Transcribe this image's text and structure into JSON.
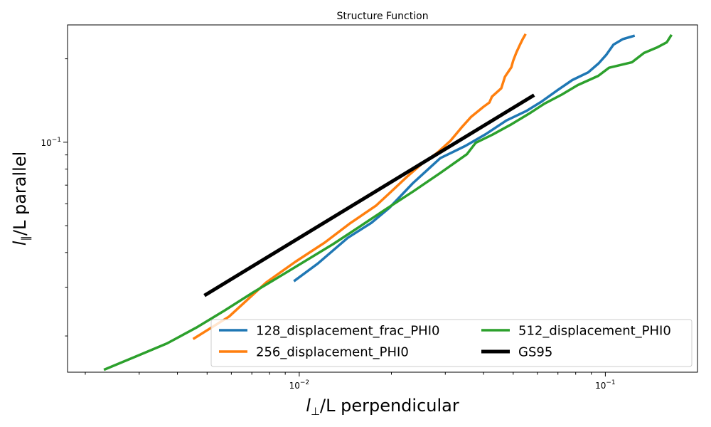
{
  "chart_data": {
    "type": "line",
    "title": "Structure Function",
    "xlabel": {
      "pre": "l",
      "sub": "⊥",
      "post": "/L perpendicular"
    },
    "ylabel": {
      "pre": "l",
      "sub": "∥",
      "post": "/L parallel"
    },
    "xscale": "log",
    "yscale": "log",
    "xlim": [
      0.00175,
      0.2
    ],
    "ylim": [
      0.0148,
      0.265
    ],
    "grid": false,
    "legend_position": "lower-right",
    "legend_columns": 2,
    "x_tick_labels": [
      {
        "value": 0.01,
        "base": "10",
        "exp": "−2"
      },
      {
        "value": 0.1,
        "base": "10",
        "exp": "−1"
      }
    ],
    "y_tick_labels": [
      {
        "value": 0.1,
        "base": "10",
        "exp": "−1"
      }
    ],
    "series": [
      {
        "name": "128_displacement_frac_PHI0",
        "color": "#1f77b4",
        "width": 3.5,
        "points": [
          [
            0.0096,
            0.0315
          ],
          [
            0.0115,
            0.0365
          ],
          [
            0.0144,
            0.0452
          ],
          [
            0.0172,
            0.0512
          ],
          [
            0.0197,
            0.058
          ],
          [
            0.0235,
            0.0711
          ],
          [
            0.0289,
            0.0876
          ],
          [
            0.0349,
            0.097
          ],
          [
            0.0406,
            0.1068
          ],
          [
            0.0475,
            0.1198
          ],
          [
            0.0551,
            0.1295
          ],
          [
            0.0619,
            0.1402
          ],
          [
            0.07,
            0.1545
          ],
          [
            0.078,
            0.1676
          ],
          [
            0.0879,
            0.1786
          ],
          [
            0.0951,
            0.1926
          ],
          [
            0.1008,
            0.207
          ],
          [
            0.1063,
            0.225
          ],
          [
            0.1141,
            0.2356
          ],
          [
            0.1247,
            0.2424
          ]
        ]
      },
      {
        "name": "256_displacement_PHI0",
        "color": "#ff7f0e",
        "width": 3.5,
        "points": [
          [
            0.0045,
            0.0195
          ],
          [
            0.0059,
            0.0235
          ],
          [
            0.0078,
            0.0312
          ],
          [
            0.0097,
            0.037
          ],
          [
            0.0121,
            0.0434
          ],
          [
            0.0147,
            0.0511
          ],
          [
            0.0178,
            0.059
          ],
          [
            0.0199,
            0.0661
          ],
          [
            0.0225,
            0.0751
          ],
          [
            0.025,
            0.0831
          ],
          [
            0.0282,
            0.0915
          ],
          [
            0.0312,
            0.1012
          ],
          [
            0.0339,
            0.113
          ],
          [
            0.0364,
            0.1233
          ],
          [
            0.04,
            0.1343
          ],
          [
            0.0418,
            0.139
          ],
          [
            0.0426,
            0.146
          ],
          [
            0.0457,
            0.1565
          ],
          [
            0.047,
            0.1723
          ],
          [
            0.0493,
            0.1864
          ],
          [
            0.05,
            0.197
          ],
          [
            0.0512,
            0.2105
          ],
          [
            0.0527,
            0.2257
          ],
          [
            0.0537,
            0.2356
          ],
          [
            0.0549,
            0.2459
          ]
        ]
      },
      {
        "name": "512_displacement_PHI0",
        "color": "#2ca02c",
        "width": 3.5,
        "points": [
          [
            0.0023,
            0.0151
          ],
          [
            0.0029,
            0.0168
          ],
          [
            0.0037,
            0.0188
          ],
          [
            0.0046,
            0.0214
          ],
          [
            0.0057,
            0.0247
          ],
          [
            0.0071,
            0.0288
          ],
          [
            0.0086,
            0.0327
          ],
          [
            0.0106,
            0.0376
          ],
          [
            0.0129,
            0.0429
          ],
          [
            0.0158,
            0.0497
          ],
          [
            0.0194,
            0.0578
          ],
          [
            0.0236,
            0.0665
          ],
          [
            0.0288,
            0.0773
          ],
          [
            0.0353,
            0.0905
          ],
          [
            0.0377,
            0.0995
          ],
          [
            0.0428,
            0.1065
          ],
          [
            0.0495,
            0.1163
          ],
          [
            0.0563,
            0.1267
          ],
          [
            0.063,
            0.1374
          ],
          [
            0.072,
            0.1485
          ],
          [
            0.0812,
            0.1607
          ],
          [
            0.0948,
            0.1735
          ],
          [
            0.1028,
            0.1856
          ],
          [
            0.1223,
            0.1944
          ],
          [
            0.1338,
            0.2099
          ],
          [
            0.1474,
            0.2196
          ],
          [
            0.1587,
            0.2294
          ],
          [
            0.1645,
            0.2442
          ]
        ]
      },
      {
        "name": "GS95",
        "color": "#000000",
        "width": 5,
        "points": [
          [
            0.0049,
            0.028
          ],
          [
            0.0585,
            0.1479
          ]
        ]
      }
    ]
  }
}
